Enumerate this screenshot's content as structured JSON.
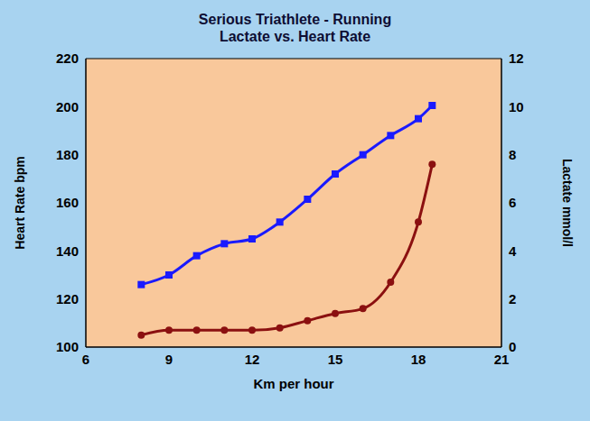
{
  "chart_data": {
    "type": "line",
    "title": "Serious Triathlete - Running",
    "subtitle": "Lactate vs. Heart Rate",
    "x_label": "Km per hour",
    "y_label": "Heart Rate bpm",
    "y2_label": "Lactate mmol/l",
    "x": [
      8,
      9,
      10,
      11,
      12,
      13,
      14,
      15,
      16,
      17,
      18,
      18.5
    ],
    "series": [
      {
        "name": "Heart Rate",
        "color": "#1a1aff",
        "marker": "square",
        "values": [
          126,
          130,
          138,
          143,
          145,
          152,
          161.5,
          172,
          180,
          188,
          195,
          200.5
        ]
      },
      {
        "name": "Lactate",
        "color": "#8b1010",
        "marker": "circle",
        "axis": "y2",
        "values": [
          0.5,
          0.7,
          0.7,
          0.7,
          0.7,
          0.8,
          1.1,
          1.4,
          1.6,
          2.7,
          5.2,
          7.6
        ]
      }
    ],
    "xlim": [
      6,
      21
    ],
    "xticks": [
      6,
      9,
      12,
      15,
      18,
      21
    ],
    "ylim": [
      100,
      220
    ],
    "yticks": [
      100,
      120,
      140,
      160,
      180,
      200,
      220
    ],
    "y2lim": [
      0,
      12
    ],
    "y2ticks": [
      0,
      2,
      4,
      6,
      8,
      10,
      12
    ],
    "grid": false
  }
}
